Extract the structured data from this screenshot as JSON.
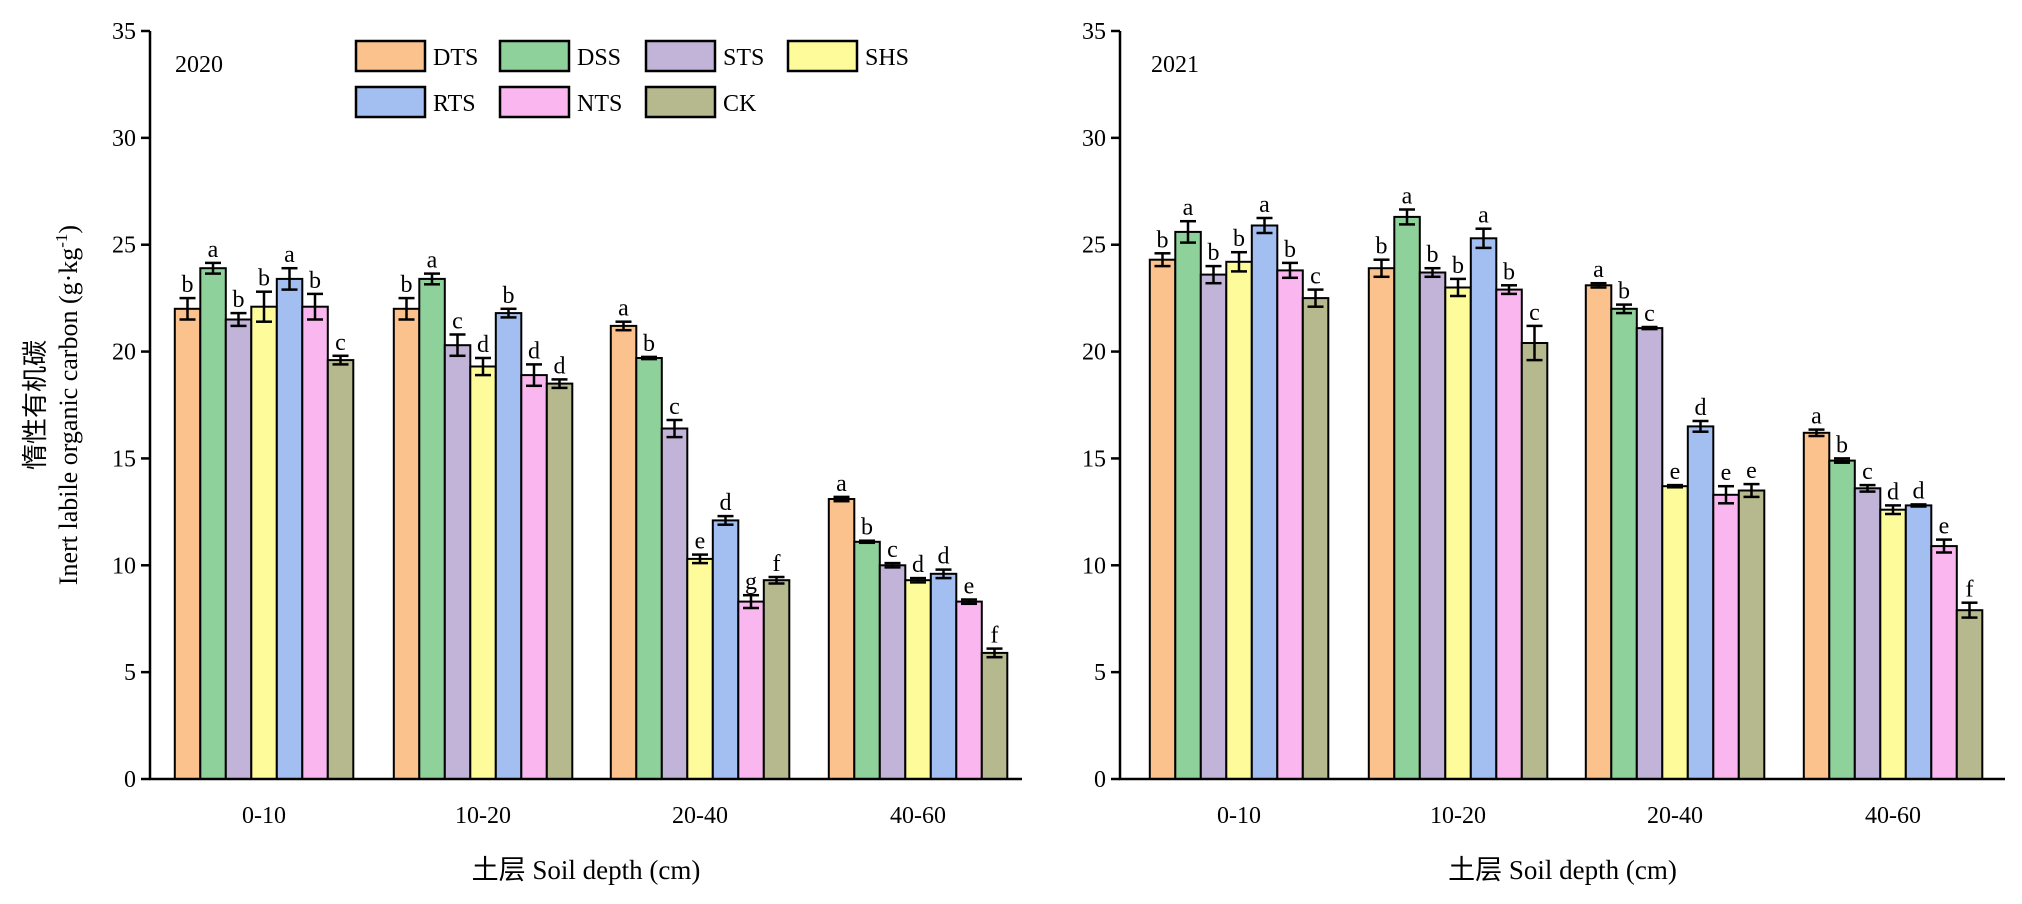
{
  "chart_data": [
    {
      "type": "bar",
      "panel_label": "2020",
      "categories": [
        "0-10",
        "10-20",
        "20-40",
        "40-60"
      ],
      "xlabel": "土层 Soil depth (cm)",
      "ylabel_cn": "惰性有机碳",
      "ylabel_en": "Inert labile organic carbon (g·kg",
      "ylabel_sup": "-1",
      "ylabel_close": ")",
      "ylim": [
        0,
        35
      ],
      "yticks": [
        "0",
        "5",
        "10",
        "15",
        "20",
        "25",
        "30",
        "35"
      ],
      "grid": false,
      "legend_position": "top",
      "series": [
        {
          "name": "DTS",
          "values": [
            22.0,
            22.0,
            21.2,
            13.1
          ],
          "errors": [
            0.5,
            0.5,
            0.2,
            0.1
          ],
          "letters": [
            "b",
            "b",
            "a",
            "a"
          ]
        },
        {
          "name": "DSS",
          "values": [
            23.9,
            23.4,
            19.7,
            11.1
          ],
          "errors": [
            0.25,
            0.25,
            0.05,
            0.05
          ],
          "letters": [
            "a",
            "a",
            "b",
            "b"
          ]
        },
        {
          "name": "STS",
          "values": [
            21.5,
            20.3,
            16.4,
            10.0
          ],
          "errors": [
            0.3,
            0.5,
            0.4,
            0.1
          ],
          "letters": [
            "b",
            "c",
            "c",
            "c"
          ]
        },
        {
          "name": "SHS",
          "values": [
            22.1,
            19.3,
            10.3,
            9.3
          ],
          "errors": [
            0.7,
            0.4,
            0.2,
            0.1
          ],
          "letters": [
            "b",
            "d",
            "e",
            "d"
          ]
        },
        {
          "name": "RTS",
          "values": [
            23.4,
            21.8,
            12.1,
            9.6
          ],
          "errors": [
            0.5,
            0.2,
            0.2,
            0.2
          ],
          "letters": [
            "a",
            "b",
            "d",
            "d"
          ]
        },
        {
          "name": "NTS",
          "values": [
            22.1,
            18.9,
            8.3,
            8.3
          ],
          "errors": [
            0.6,
            0.5,
            0.3,
            0.1
          ],
          "letters": [
            "b",
            "d",
            "g",
            "e"
          ]
        },
        {
          "name": "CK",
          "values": [
            19.6,
            18.5,
            9.3,
            5.9
          ],
          "errors": [
            0.2,
            0.2,
            0.15,
            0.2
          ],
          "letters": [
            "c",
            "d",
            "f",
            "f"
          ]
        }
      ]
    },
    {
      "type": "bar",
      "panel_label": "2021",
      "categories": [
        "0-10",
        "10-20",
        "20-40",
        "40-60"
      ],
      "xlabel": "土层 Soil depth (cm)",
      "ylim": [
        0,
        35
      ],
      "yticks": [
        "0",
        "5",
        "10",
        "15",
        "20",
        "25",
        "30",
        "35"
      ],
      "grid": false,
      "series": [
        {
          "name": "DTS",
          "values": [
            24.3,
            23.9,
            23.1,
            16.2
          ],
          "errors": [
            0.3,
            0.4,
            0.1,
            0.15
          ],
          "letters": [
            "b",
            "b",
            "a",
            "a"
          ]
        },
        {
          "name": "DSS",
          "values": [
            25.6,
            26.3,
            22.0,
            14.9
          ],
          "errors": [
            0.5,
            0.35,
            0.2,
            0.1
          ],
          "letters": [
            "a",
            "a",
            "b",
            "b"
          ]
        },
        {
          "name": "STS",
          "values": [
            23.6,
            23.7,
            21.1,
            13.6
          ],
          "errors": [
            0.4,
            0.2,
            0.05,
            0.15
          ],
          "letters": [
            "b",
            "b",
            "c",
            "c"
          ]
        },
        {
          "name": "SHS",
          "values": [
            24.2,
            23.0,
            13.7,
            12.6
          ],
          "errors": [
            0.45,
            0.4,
            0.05,
            0.2
          ],
          "letters": [
            "b",
            "b",
            "e",
            "d"
          ]
        },
        {
          "name": "RTS",
          "values": [
            25.9,
            25.3,
            16.5,
            12.8
          ],
          "errors": [
            0.35,
            0.45,
            0.25,
            0.05
          ],
          "letters": [
            "a",
            "a",
            "d",
            "d"
          ]
        },
        {
          "name": "NTS",
          "values": [
            23.8,
            22.9,
            13.3,
            10.9
          ],
          "errors": [
            0.35,
            0.2,
            0.4,
            0.3
          ],
          "letters": [
            "b",
            "b",
            "e",
            "e"
          ]
        },
        {
          "name": "CK",
          "values": [
            22.5,
            20.4,
            13.5,
            7.9
          ],
          "errors": [
            0.4,
            0.8,
            0.3,
            0.35
          ],
          "letters": [
            "c",
            "c",
            "e",
            "f"
          ]
        }
      ]
    }
  ],
  "colors": {
    "DTS": "#fcc28e",
    "DSS": "#8fd19a",
    "STS": "#c2b4d8",
    "SHS": "#fefb9a",
    "RTS": "#a3bff2",
    "NTS": "#f9b6ef",
    "CK": "#b6b98d",
    "axis": "#000000"
  }
}
